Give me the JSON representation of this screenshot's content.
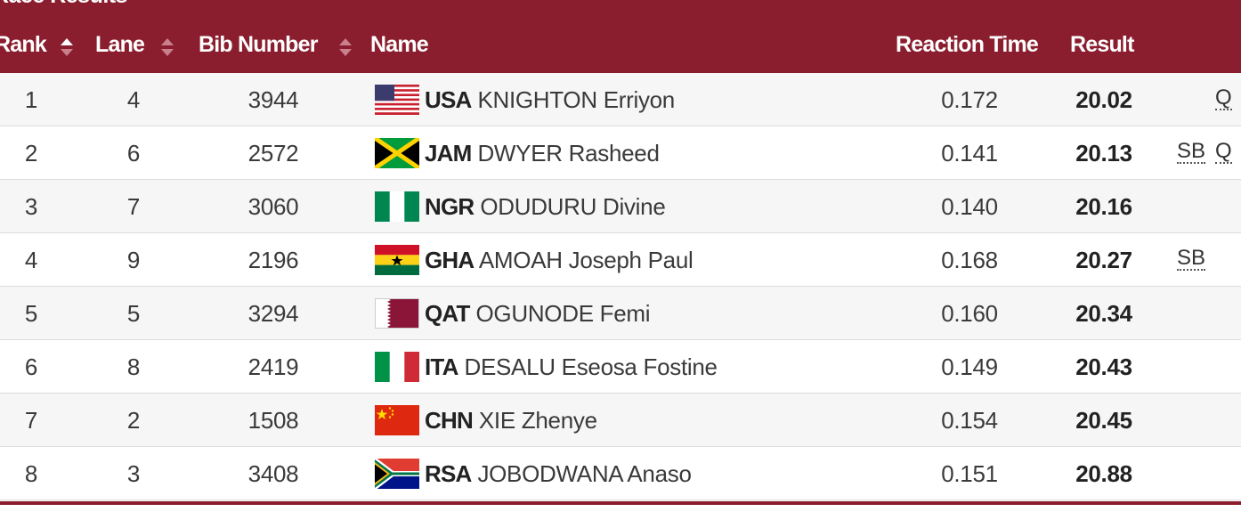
{
  "header": {
    "title": "Race Results"
  },
  "table": {
    "columns": [
      "Rank",
      "Lane",
      "Bib Number",
      "Name",
      "Reaction Time",
      "Result"
    ],
    "rows": [
      {
        "rank": "1",
        "lane": "4",
        "bib": "3944",
        "country": "USA",
        "name": "KNIGHTON Erriyon",
        "reaction": "0.172",
        "result": "20.02",
        "marks": [
          "Q"
        ]
      },
      {
        "rank": "2",
        "lane": "6",
        "bib": "2572",
        "country": "JAM",
        "name": "DWYER Rasheed",
        "reaction": "0.141",
        "result": "20.13",
        "marks": [
          "SB",
          "Q"
        ]
      },
      {
        "rank": "3",
        "lane": "7",
        "bib": "3060",
        "country": "NGR",
        "name": "ODUDURU Divine",
        "reaction": "0.140",
        "result": "20.16",
        "marks": []
      },
      {
        "rank": "4",
        "lane": "9",
        "bib": "2196",
        "country": "GHA",
        "name": "AMOAH Joseph Paul",
        "reaction": "0.168",
        "result": "20.27",
        "marks": [
          "SB"
        ]
      },
      {
        "rank": "5",
        "lane": "5",
        "bib": "3294",
        "country": "QAT",
        "name": "OGUNODE Femi",
        "reaction": "0.160",
        "result": "20.34",
        "marks": []
      },
      {
        "rank": "6",
        "lane": "8",
        "bib": "2419",
        "country": "ITA",
        "name": "DESALU Eseosa Fostine",
        "reaction": "0.149",
        "result": "20.43",
        "marks": []
      },
      {
        "rank": "7",
        "lane": "2",
        "bib": "1508",
        "country": "CHN",
        "name": "XIE Zhenye",
        "reaction": "0.154",
        "result": "20.45",
        "marks": []
      },
      {
        "rank": "8",
        "lane": "3",
        "bib": "3408",
        "country": "RSA",
        "name": "JOBODWANA Anaso",
        "reaction": "0.151",
        "result": "20.88",
        "marks": []
      }
    ]
  }
}
